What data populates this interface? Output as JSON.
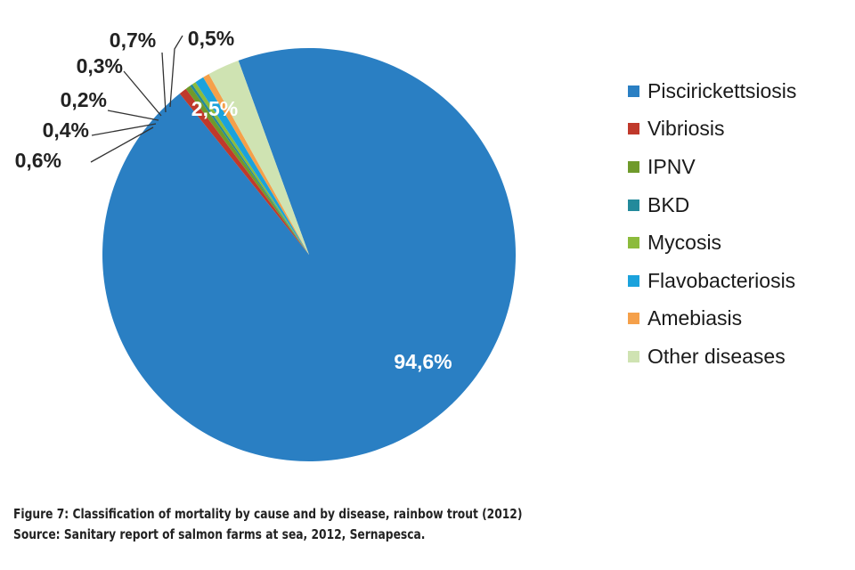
{
  "chart_data": {
    "type": "pie",
    "categories": [
      "Piscirickettsiosis",
      "Vibriosis",
      "IPNV",
      "BKD",
      "Mycosis",
      "Flavobacteriosis",
      "Amebiasis",
      "Other diseases"
    ],
    "values": [
      94.6,
      0.6,
      0.4,
      0.2,
      0.3,
      0.7,
      0.5,
      2.5
    ],
    "labels": [
      "94,6%",
      "0,6%",
      "0,4%",
      "0,2%",
      "0,3%",
      "0,7%",
      "0,5%",
      "2,5%"
    ],
    "colors": [
      "#2a7fc3",
      "#c0392b",
      "#6f9a2b",
      "#238a9b",
      "#8cbb3c",
      "#1ba2dc",
      "#f5a04a",
      "#cfe3b2"
    ],
    "legend_position": "right"
  },
  "caption": {
    "line1": "Figure 7: Classification of mortality by cause and by disease, rainbow trout (2012)",
    "line2": "Source: Sanitary report of salmon farms at sea, 2012, Sernapesca."
  }
}
